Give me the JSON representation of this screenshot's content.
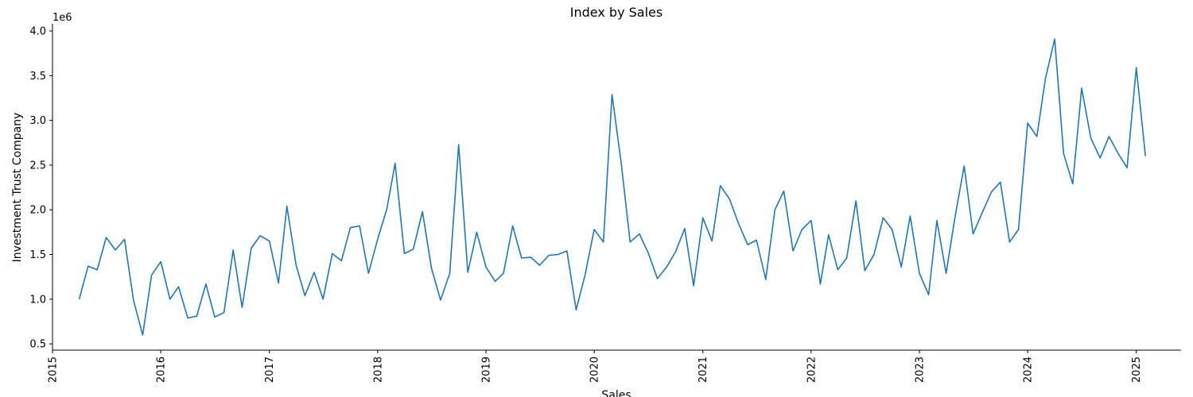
{
  "chart_data": {
    "type": "line",
    "title": "Index by Sales",
    "xlabel": "Sales",
    "ylabel": "Investment Trust Company",
    "y_offset_label": "1e6",
    "y_scale_factor": 1000000,
    "xlim": [
      "2015-01-01",
      "2025-06-01"
    ],
    "ylim": [
      430000,
      4080000
    ],
    "x_ticks": [
      "2015",
      "2016",
      "2017",
      "2018",
      "2019",
      "2020",
      "2021",
      "2022",
      "2023",
      "2024",
      "2025"
    ],
    "y_ticks": [
      "0.5",
      "1.0",
      "1.5",
      "2.0",
      "2.5",
      "3.0",
      "3.5",
      "4.0"
    ],
    "grid": false,
    "color": "#1f77b4",
    "series": [
      {
        "x": [
          "2015-04",
          "2015-05",
          "2015-06",
          "2015-07",
          "2015-08",
          "2015-09",
          "2015-10",
          "2015-11",
          "2015-12",
          "2016-01",
          "2016-02",
          "2016-03",
          "2016-04",
          "2016-05",
          "2016-06",
          "2016-07",
          "2016-08",
          "2016-09",
          "2016-10",
          "2016-11",
          "2016-12",
          "2017-01",
          "2017-02",
          "2017-03",
          "2017-04",
          "2017-05",
          "2017-06",
          "2017-07",
          "2017-08",
          "2017-09",
          "2017-10",
          "2017-11",
          "2017-12",
          "2018-01",
          "2018-02",
          "2018-03",
          "2018-04",
          "2018-05",
          "2018-06",
          "2018-07",
          "2018-08",
          "2018-09",
          "2018-10",
          "2018-11",
          "2018-12",
          "2019-01",
          "2019-02",
          "2019-03",
          "2019-04",
          "2019-05",
          "2019-06",
          "2019-07",
          "2019-08",
          "2019-09",
          "2019-10",
          "2019-11",
          "2019-12",
          "2020-01",
          "2020-02",
          "2020-03",
          "2020-04",
          "2020-05",
          "2020-06",
          "2020-07",
          "2020-08",
          "2020-09",
          "2020-10",
          "2020-11",
          "2020-12",
          "2021-01",
          "2021-02",
          "2021-03",
          "2021-04",
          "2021-05",
          "2021-06",
          "2021-07",
          "2021-08",
          "2021-09",
          "2021-10",
          "2021-11",
          "2021-12",
          "2022-01",
          "2022-02",
          "2022-03",
          "2022-04",
          "2022-05",
          "2022-06",
          "2022-07",
          "2022-08",
          "2022-09",
          "2022-10",
          "2022-11",
          "2022-12",
          "2023-01",
          "2023-02",
          "2023-03",
          "2023-04",
          "2023-05",
          "2023-06",
          "2023-07",
          "2023-08",
          "2023-09",
          "2023-10",
          "2023-11",
          "2023-12",
          "2024-01",
          "2024-02",
          "2024-03",
          "2024-04",
          "2024-05",
          "2024-06",
          "2024-07",
          "2024-08",
          "2024-09",
          "2024-10",
          "2024-11",
          "2024-12",
          "2025-01",
          "2025-02"
        ],
        "values": [
          1000000,
          1370000,
          1330000,
          1690000,
          1550000,
          1670000,
          990000,
          600000,
          1270000,
          1420000,
          1000000,
          1140000,
          790000,
          810000,
          1170000,
          800000,
          850000,
          1550000,
          910000,
          1570000,
          1710000,
          1650000,
          1180000,
          2040000,
          1380000,
          1040000,
          1300000,
          1000000,
          1510000,
          1430000,
          1800000,
          1820000,
          1290000,
          1670000,
          2010000,
          2520000,
          1510000,
          1560000,
          1980000,
          1350000,
          990000,
          1290000,
          2730000,
          1300000,
          1750000,
          1360000,
          1200000,
          1290000,
          1820000,
          1460000,
          1470000,
          1380000,
          1490000,
          1500000,
          1540000,
          880000,
          1270000,
          1780000,
          1640000,
          3290000,
          2520000,
          1640000,
          1730000,
          1520000,
          1230000,
          1360000,
          1530000,
          1790000,
          1150000,
          1910000,
          1650000,
          2270000,
          2120000,
          1850000,
          1610000,
          1660000,
          1220000,
          2000000,
          2210000,
          1540000,
          1780000,
          1880000,
          1170000,
          1720000,
          1330000,
          1460000,
          2100000,
          1320000,
          1500000,
          1910000,
          1780000,
          1360000,
          1930000,
          1290000,
          1050000,
          1880000,
          1290000,
          1920000,
          2490000,
          1730000,
          1970000,
          2200000,
          2310000,
          1640000,
          1780000,
          2970000,
          2820000,
          3470000,
          3910000,
          2630000,
          2290000,
          3360000,
          2800000,
          2580000,
          2820000,
          2630000,
          2470000,
          3590000,
          2600000
        ]
      }
    ]
  }
}
